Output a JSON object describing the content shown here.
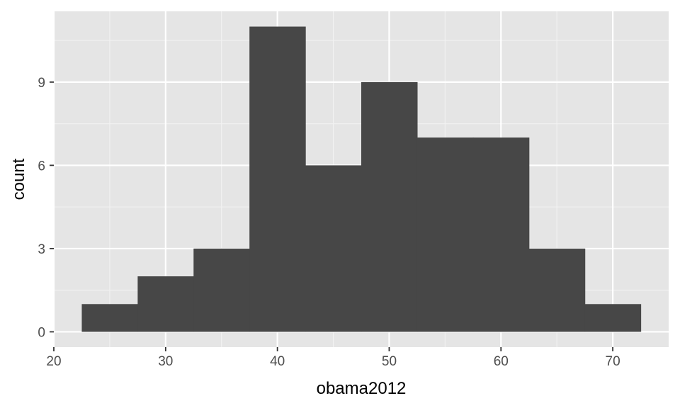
{
  "chart_data": {
    "type": "bar",
    "subtype": "histogram",
    "title": "",
    "xlabel": "obama2012",
    "ylabel": "count",
    "bin_width": 5,
    "bins": [
      {
        "x_start": 22.5,
        "x_end": 27.5,
        "count": 1
      },
      {
        "x_start": 27.5,
        "x_end": 32.5,
        "count": 2
      },
      {
        "x_start": 32.5,
        "x_end": 37.5,
        "count": 3
      },
      {
        "x_start": 37.5,
        "x_end": 42.5,
        "count": 11
      },
      {
        "x_start": 42.5,
        "x_end": 47.5,
        "count": 6
      },
      {
        "x_start": 47.5,
        "x_end": 52.5,
        "count": 9
      },
      {
        "x_start": 52.5,
        "x_end": 57.5,
        "count": 7
      },
      {
        "x_start": 57.5,
        "x_end": 62.5,
        "count": 7
      },
      {
        "x_start": 62.5,
        "x_end": 67.5,
        "count": 3
      },
      {
        "x_start": 67.5,
        "x_end": 72.5,
        "count": 1
      }
    ],
    "xlim": [
      20,
      75
    ],
    "ylim": [
      -0.55,
      11.55
    ],
    "x_ticks": [
      20,
      30,
      40,
      50,
      60,
      70
    ],
    "y_ticks": [
      0,
      3,
      6,
      9
    ],
    "grid": true,
    "legend": "none",
    "colors": {
      "bar_fill": "#474747",
      "panel_background": "#e5e5e5",
      "grid_major": "#ffffff",
      "grid_minor": "#f2f2f2",
      "tick_mark": "#333333"
    }
  }
}
